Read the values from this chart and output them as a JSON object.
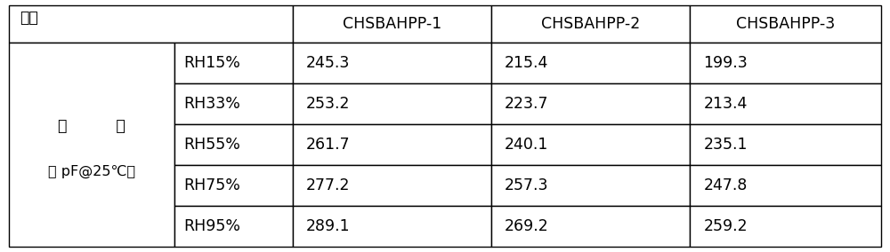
{
  "header_col01_text": "试样",
  "header_cols": [
    "CHSBAHPP-1",
    "CHSBAHPP-2",
    "CHSBAHPP-3"
  ],
  "merged_cell_line1": "电          容",
  "merged_cell_line2": "（ pF@25℃）",
  "rh_labels": [
    "RH15%",
    "RH33%",
    "RH55%",
    "RH75%",
    "RH95%"
  ],
  "data": [
    [
      "245.3",
      "215.4",
      "199.3"
    ],
    [
      "253.2",
      "223.7",
      "213.4"
    ],
    [
      "261.7",
      "240.1",
      "235.1"
    ],
    [
      "277.2",
      "257.3",
      "247.8"
    ],
    [
      "289.1",
      "269.2",
      "259.2"
    ]
  ],
  "background_color": "#ffffff",
  "border_color": "#000000",
  "text_color": "#000000",
  "fig_width": 10.0,
  "fig_height": 2.84,
  "dpi": 100
}
